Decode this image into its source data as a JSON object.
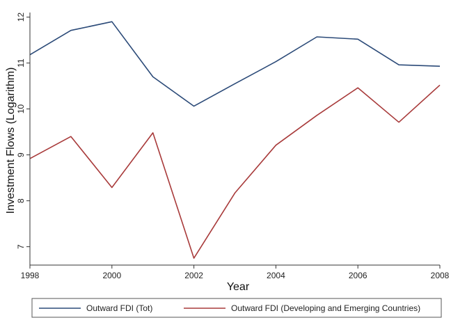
{
  "chart_data": {
    "type": "line",
    "xlabel": "Year",
    "ylabel": "Investment Flows (Logarithm)",
    "x": [
      1998,
      1999,
      2000,
      2001,
      2002,
      2003,
      2004,
      2005,
      2006,
      2007,
      2008
    ],
    "xlim": [
      1998,
      2008
    ],
    "ylim": [
      6.6,
      12.1
    ],
    "x_ticks": [
      1998,
      2000,
      2002,
      2004,
      2006,
      2008
    ],
    "y_ticks": [
      7,
      8,
      9,
      10,
      11,
      12
    ],
    "grid": false,
    "legend_position": "bottom",
    "series": [
      {
        "name": "Outward FDI (Tot)",
        "color": "#2b4a78",
        "values": [
          11.18,
          11.71,
          11.9,
          10.7,
          10.06,
          10.55,
          11.03,
          11.57,
          11.52,
          10.96,
          10.93
        ]
      },
      {
        "name": "Outward FDI (Developing and Emerging Countries)",
        "color": "#a83a3a",
        "values": [
          8.92,
          9.4,
          8.29,
          9.48,
          6.75,
          8.17,
          9.21,
          9.86,
          10.46,
          9.71,
          10.52
        ]
      }
    ]
  }
}
